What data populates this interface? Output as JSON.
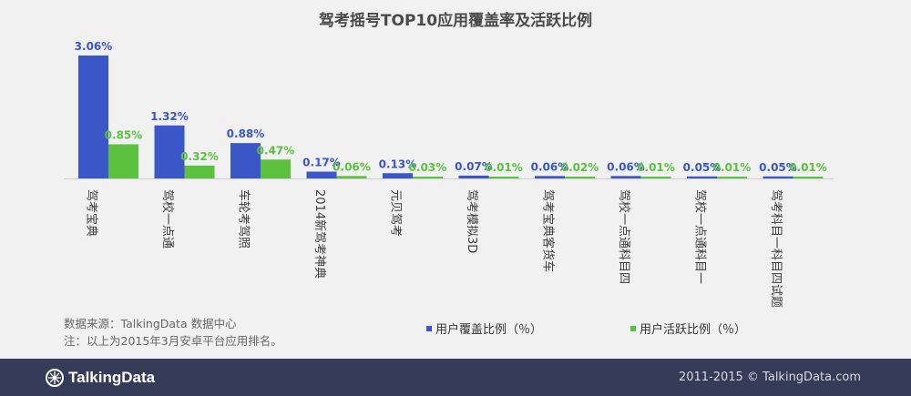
{
  "chart_data": {
    "type": "bar",
    "title": "驾考摇号TOP10应用覆盖率及活跃比例",
    "categories": [
      "驾考宝典",
      "驾校一点通",
      "车轮考驾照",
      "2014新驾考神典",
      "元贝驾考",
      "驾考模拟3D",
      "驾考宝典客货车",
      "驾校一点通科目四",
      "驾校一点通科目一",
      "驾考科目一科目四试题"
    ],
    "series": [
      {
        "name": "用户覆盖比例（％）",
        "color": "#3a56c8",
        "values": [
          3.06,
          1.32,
          0.88,
          0.17,
          0.13,
          0.07,
          0.06,
          0.06,
          0.05,
          0.05
        ],
        "labels": [
          "3.06%",
          "1.32%",
          "0.88%",
          "0.17%",
          "0.13%",
          "0.07%",
          "0.06%",
          "0.06%",
          "0.05%",
          "0.05%"
        ]
      },
      {
        "name": "用户活跃比例（％）",
        "color": "#5cc13f",
        "values": [
          0.85,
          0.32,
          0.47,
          0.06,
          0.03,
          0.01,
          0.02,
          0.01,
          0.01,
          0.01
        ],
        "labels": [
          "0.85%",
          "0.32%",
          "0.47%",
          "0.06%",
          "0.03%",
          "0.01%",
          "0.02%",
          "0.01%",
          "0.01%",
          "0.01%"
        ]
      }
    ],
    "ylim": [
      0,
      3.06
    ],
    "grid": false,
    "legend": "bottom"
  },
  "notes": {
    "source": "数据来源：TalkingData 数据中心",
    "remark": "注：以上为2015年3月安卓平台应用排名。"
  },
  "footer": {
    "logo_text": "TalkingData",
    "copyright": "2011-2015 © TalkingData.com"
  }
}
